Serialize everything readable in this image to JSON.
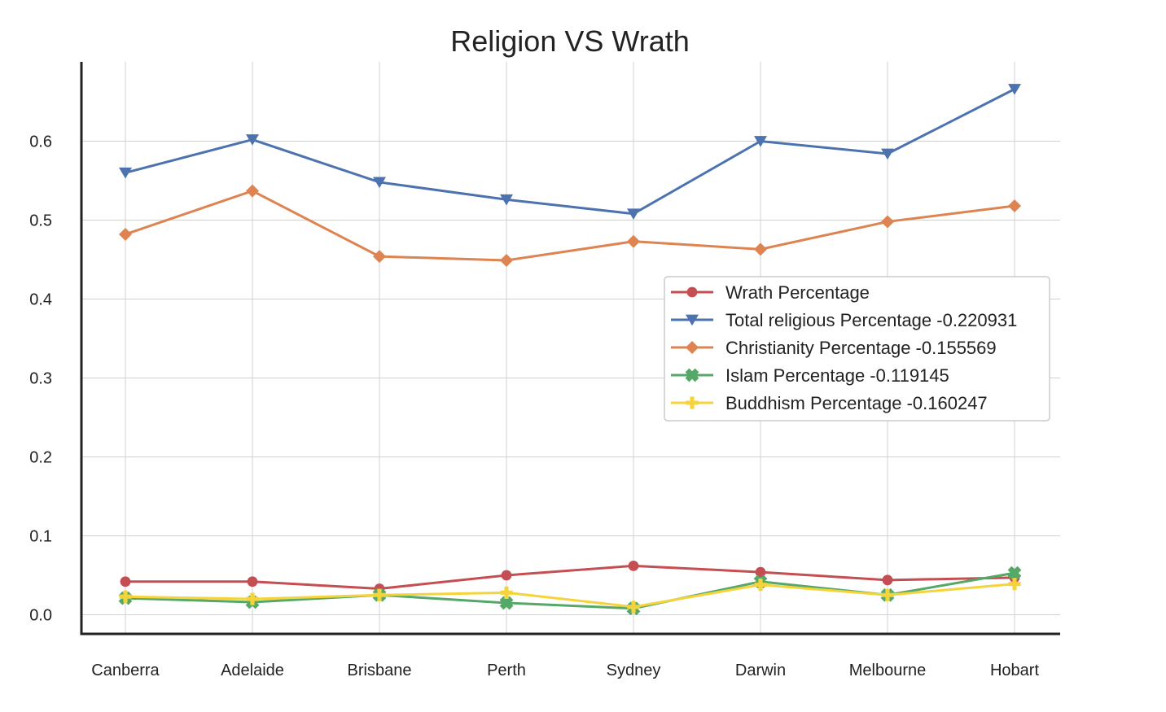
{
  "chart_data": {
    "type": "line",
    "title": "Religion VS Wrath",
    "xlabel": "",
    "ylabel": "",
    "categories": [
      "Canberra",
      "Adelaide",
      "Brisbane",
      "Perth",
      "Sydney",
      "Darwin",
      "Melbourne",
      "Hobart"
    ],
    "ylim": [
      -0.025,
      0.7
    ],
    "yticks": [
      0.0,
      0.1,
      0.2,
      0.3,
      0.4,
      0.5,
      0.6
    ],
    "yticklabels": [
      "0.0",
      "0.1",
      "0.2",
      "0.3",
      "0.4",
      "0.5",
      "0.6"
    ],
    "grid": true,
    "legend_position": "center-right",
    "series": [
      {
        "name": "Wrath Percentage",
        "color": "#c44e52",
        "marker": "circle",
        "values": [
          0.042,
          0.042,
          0.033,
          0.05,
          0.062,
          0.054,
          0.044,
          0.047
        ]
      },
      {
        "name": "Total religious Percentage -0.220931",
        "color": "#4c72b0",
        "marker": "triangle-down",
        "values": [
          0.56,
          0.602,
          0.548,
          0.526,
          0.508,
          0.6,
          0.584,
          0.666
        ]
      },
      {
        "name": "Christianity Percentage -0.155569",
        "color": "#dd8452",
        "marker": "diamond",
        "values": [
          0.482,
          0.537,
          0.454,
          0.449,
          0.473,
          0.463,
          0.498,
          0.518
        ]
      },
      {
        "name": "Islam Percentage -0.119145",
        "color": "#55a868",
        "marker": "x",
        "values": [
          0.021,
          0.016,
          0.025,
          0.015,
          0.008,
          0.042,
          0.025,
          0.053
        ]
      },
      {
        "name": "Buddhism Percentage -0.160247",
        "color": "#f5d33b",
        "marker": "plus",
        "values": [
          0.023,
          0.02,
          0.025,
          0.028,
          0.01,
          0.038,
          0.025,
          0.039
        ]
      }
    ]
  }
}
